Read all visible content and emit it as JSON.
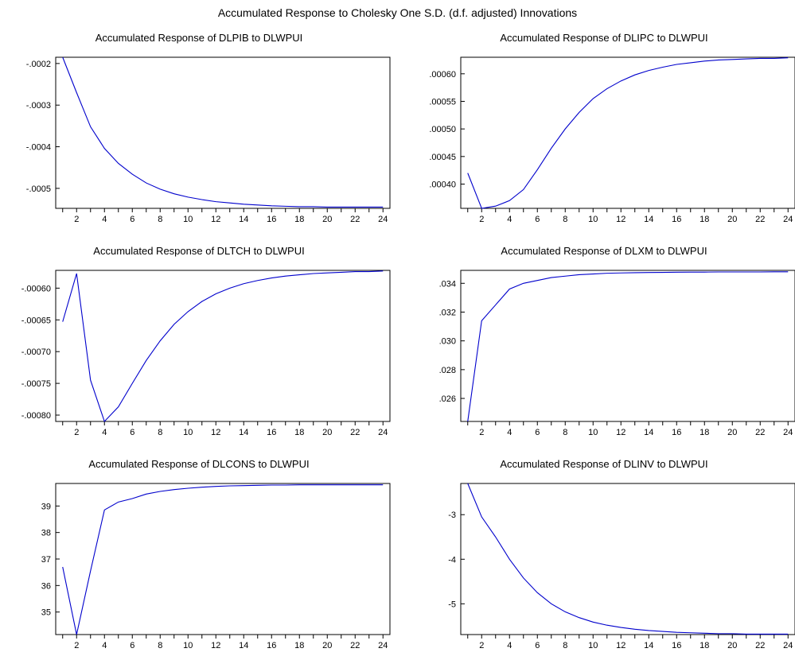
{
  "figure_title": "Accumulated Response to Cholesky One S.D. (d.f. adjusted) Innovations",
  "line_color": "#0000cc",
  "chart_data": [
    {
      "type": "line",
      "title": "Accumulated Response of DLPIB to DLWPUI",
      "x": [
        1,
        2,
        3,
        4,
        5,
        6,
        7,
        8,
        9,
        10,
        11,
        12,
        13,
        14,
        15,
        16,
        17,
        18,
        19,
        20,
        21,
        22,
        23,
        24
      ],
      "values": [
        -0.000185,
        -0.00027,
        -0.000352,
        -0.000404,
        -0.00044,
        -0.000466,
        -0.000487,
        -0.000502,
        -0.000513,
        -0.000521,
        -0.000527,
        -0.000532,
        -0.000535,
        -0.000538,
        -0.00054,
        -0.000542,
        -0.000543,
        -0.000544,
        -0.000544,
        -0.000545,
        -0.000545,
        -0.000545,
        -0.000545,
        -0.000545
      ],
      "xlim": [
        0.5,
        24.5
      ],
      "ylim": [
        -0.000548,
        -0.000185
      ],
      "xticks": [
        2,
        4,
        6,
        8,
        10,
        12,
        14,
        16,
        18,
        20,
        22,
        24
      ],
      "yticks": [
        -0.0002,
        -0.0003,
        -0.0004,
        -0.0005
      ],
      "ytick_labels": [
        "-.0002",
        "-.0003",
        "-.0004",
        "-.0005"
      ]
    },
    {
      "type": "line",
      "title": "Accumulated Response of DLIPC to DLWPUI",
      "x": [
        1,
        2,
        3,
        4,
        5,
        6,
        7,
        8,
        9,
        10,
        11,
        12,
        13,
        14,
        15,
        16,
        17,
        18,
        19,
        20,
        21,
        22,
        23,
        24
      ],
      "values": [
        0.00042,
        0.000356,
        0.00036,
        0.00037,
        0.00039,
        0.000426,
        0.000465,
        0.0005,
        0.00053,
        0.000555,
        0.000573,
        0.000587,
        0.000598,
        0.000606,
        0.000612,
        0.000617,
        0.00062,
        0.000623,
        0.000625,
        0.000626,
        0.000627,
        0.000628,
        0.000628,
        0.000629
      ],
      "xlim": [
        0.5,
        24.5
      ],
      "ylim": [
        0.000356,
        0.00063
      ],
      "xticks": [
        2,
        4,
        6,
        8,
        10,
        12,
        14,
        16,
        18,
        20,
        22,
        24
      ],
      "yticks": [
        0.0004,
        0.00045,
        0.0005,
        0.00055,
        0.0006
      ],
      "ytick_labels": [
        ".00040",
        ".00045",
        ".00050",
        ".00055",
        ".00060"
      ]
    },
    {
      "type": "line",
      "title": "Accumulated Response of DLTCH to DLWPUI",
      "x": [
        1,
        2,
        3,
        4,
        5,
        6,
        7,
        8,
        9,
        10,
        11,
        12,
        13,
        14,
        15,
        16,
        17,
        18,
        19,
        20,
        21,
        22,
        23,
        24
      ],
      "values": [
        -0.000653,
        -0.000577,
        -0.000745,
        -0.00081,
        -0.000787,
        -0.00075,
        -0.000714,
        -0.000683,
        -0.000657,
        -0.000637,
        -0.000621,
        -0.000609,
        -0.0006,
        -0.000593,
        -0.000588,
        -0.000584,
        -0.000581,
        -0.000579,
        -0.000577,
        -0.000576,
        -0.000575,
        -0.000574,
        -0.000574,
        -0.000573
      ],
      "xlim": [
        0.5,
        24.5
      ],
      "ylim": [
        -0.00081,
        -0.000572
      ],
      "xticks": [
        2,
        4,
        6,
        8,
        10,
        12,
        14,
        16,
        18,
        20,
        22,
        24
      ],
      "yticks": [
        -0.0006,
        -0.00065,
        -0.0007,
        -0.00075,
        -0.0008
      ],
      "ytick_labels": [
        "-.00060",
        "-.00065",
        "-.00070",
        "-.00075",
        "-.00080"
      ]
    },
    {
      "type": "line",
      "title": "Accumulated Response of DLXM to DLWPUI",
      "x": [
        1,
        2,
        3,
        4,
        5,
        6,
        7,
        8,
        9,
        10,
        11,
        12,
        13,
        14,
        15,
        16,
        17,
        18,
        19,
        20,
        21,
        22,
        23,
        24
      ],
      "values": [
        0.0244,
        0.0314,
        0.0325,
        0.0336,
        0.034,
        0.0342,
        0.0344,
        0.0345,
        0.0346,
        0.03465,
        0.0347,
        0.03472,
        0.03474,
        0.03475,
        0.03476,
        0.03477,
        0.03478,
        0.03478,
        0.03479,
        0.03479,
        0.03479,
        0.03479,
        0.0348,
        0.0348
      ],
      "xlim": [
        0.5,
        24.5
      ],
      "ylim": [
        0.0244,
        0.0349
      ],
      "xticks": [
        2,
        4,
        6,
        8,
        10,
        12,
        14,
        16,
        18,
        20,
        22,
        24
      ],
      "yticks": [
        0.026,
        0.028,
        0.03,
        0.032,
        0.034
      ],
      "ytick_labels": [
        ".026",
        ".028",
        ".030",
        ".032",
        ".034"
      ]
    },
    {
      "type": "line",
      "title": "Accumulated Response of DLCONS to DLWPUI",
      "x": [
        1,
        2,
        3,
        4,
        5,
        6,
        7,
        8,
        9,
        10,
        11,
        12,
        13,
        14,
        15,
        16,
        17,
        18,
        19,
        20,
        21,
        22,
        23,
        24
      ],
      "values": [
        36.7,
        34.15,
        36.55,
        38.85,
        39.15,
        39.28,
        39.45,
        39.55,
        39.62,
        39.67,
        39.71,
        39.74,
        39.76,
        39.77,
        39.78,
        39.79,
        39.79,
        39.8,
        39.8,
        39.8,
        39.8,
        39.8,
        39.8,
        39.8
      ],
      "xlim": [
        0.5,
        24.5
      ],
      "ylim": [
        34.15,
        39.85
      ],
      "xticks": [
        2,
        4,
        6,
        8,
        10,
        12,
        14,
        16,
        18,
        20,
        22,
        24
      ],
      "yticks": [
        35,
        36,
        37,
        38,
        39
      ],
      "ytick_labels": [
        "35",
        "36",
        "37",
        "38",
        "39"
      ]
    },
    {
      "type": "line",
      "title": "Accumulated Response of DLINV to DLWPUI",
      "x": [
        1,
        2,
        3,
        4,
        5,
        6,
        7,
        8,
        9,
        10,
        11,
        12,
        13,
        14,
        15,
        16,
        17,
        18,
        19,
        20,
        21,
        22,
        23,
        24
      ],
      "values": [
        -2.3,
        -3.05,
        -3.5,
        -4.0,
        -4.42,
        -4.75,
        -5.0,
        -5.18,
        -5.31,
        -5.41,
        -5.48,
        -5.53,
        -5.57,
        -5.6,
        -5.62,
        -5.64,
        -5.65,
        -5.66,
        -5.67,
        -5.67,
        -5.68,
        -5.68,
        -5.68,
        -5.68
      ],
      "xlim": [
        0.5,
        24.5
      ],
      "ylim": [
        -5.69,
        -2.3
      ],
      "xticks": [
        2,
        4,
        6,
        8,
        10,
        12,
        14,
        16,
        18,
        20,
        22,
        24
      ],
      "yticks": [
        -3,
        -4,
        -5
      ],
      "ytick_labels": [
        "-3",
        "-4",
        "-5"
      ]
    }
  ]
}
